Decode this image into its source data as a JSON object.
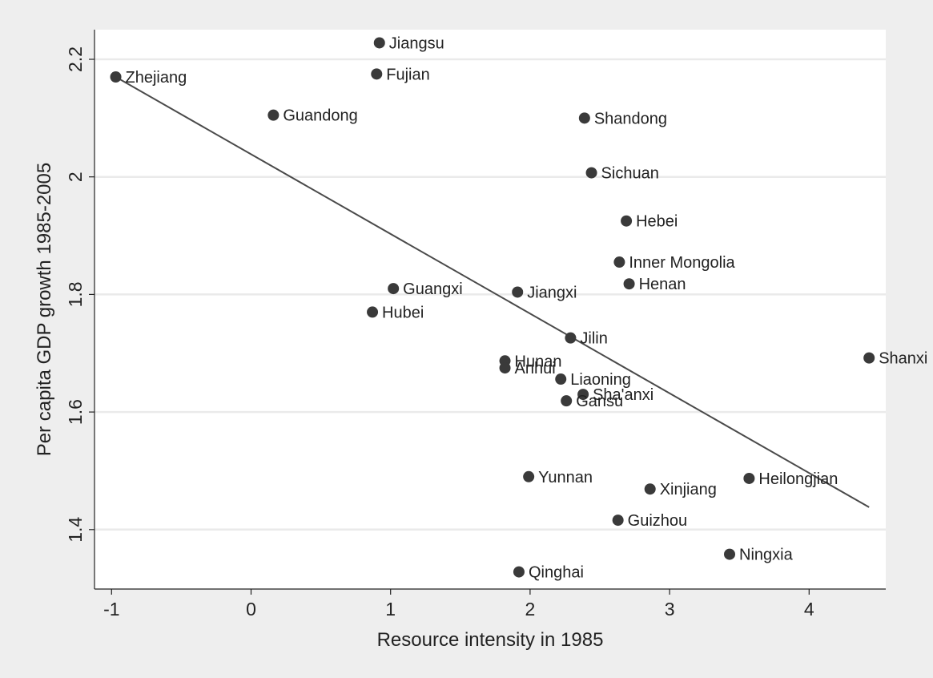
{
  "chart_data": {
    "type": "scatter",
    "title": "",
    "xlabel": "Resource intensity in 1985",
    "ylabel": "Per capita GDP growth 1985-2005",
    "xlim": [
      -1.1,
      4.5
    ],
    "ylim": [
      1.3,
      2.25
    ],
    "xticks": [
      -1,
      0,
      1,
      2,
      3,
      4
    ],
    "yticks": [
      1.4,
      1.6,
      1.8,
      2.0,
      2.2
    ],
    "xtick_labels": [
      "-1",
      "0",
      "1",
      "2",
      "3",
      "4"
    ],
    "ytick_labels": [
      "1.4",
      "1.6",
      "1.8",
      "2",
      "2.2"
    ],
    "grid": "horizontal",
    "legend": "none",
    "colors": {
      "outer_background": "#eeeeee",
      "plot_background": "#ffffff",
      "gridline": "#eaeaea",
      "marker": "#3a3a3a",
      "fit_line": "#4a4a4a",
      "text": "#222222"
    },
    "points": [
      {
        "label": "Zhejiang",
        "x": -0.97,
        "y": 2.17
      },
      {
        "label": "Jiangsu",
        "x": 0.92,
        "y": 2.228
      },
      {
        "label": "Fujian",
        "x": 0.9,
        "y": 2.175
      },
      {
        "label": "Guandong",
        "x": 0.16,
        "y": 2.105
      },
      {
        "label": "Shandong",
        "x": 2.39,
        "y": 2.1
      },
      {
        "label": "Sichuan",
        "x": 2.44,
        "y": 2.007
      },
      {
        "label": "Hebei",
        "x": 2.69,
        "y": 1.925
      },
      {
        "label": "Inner Mongolia",
        "x": 2.64,
        "y": 1.855
      },
      {
        "label": "Henan",
        "x": 2.71,
        "y": 1.818
      },
      {
        "label": "Guangxi",
        "x": 1.02,
        "y": 1.81
      },
      {
        "label": "Jiangxi",
        "x": 1.91,
        "y": 1.804
      },
      {
        "label": "Hubei",
        "x": 0.87,
        "y": 1.77
      },
      {
        "label": "Jilin",
        "x": 2.29,
        "y": 1.726
      },
      {
        "label": "Shanxi",
        "x": 4.43,
        "y": 1.692
      },
      {
        "label": "Hunan",
        "x": 1.82,
        "y": 1.687
      },
      {
        "label": "Anhui",
        "x": 1.82,
        "y": 1.675
      },
      {
        "label": "Liaoning",
        "x": 2.22,
        "y": 1.656
      },
      {
        "label": "Sha'anxi",
        "x": 2.38,
        "y": 1.63
      },
      {
        "label": "Gansu",
        "x": 2.26,
        "y": 1.619
      },
      {
        "label": "Yunnan",
        "x": 1.99,
        "y": 1.49
      },
      {
        "label": "Heilongjian",
        "x": 3.57,
        "y": 1.487
      },
      {
        "label": "Xinjiang",
        "x": 2.86,
        "y": 1.469
      },
      {
        "label": "Guizhou",
        "x": 2.63,
        "y": 1.416
      },
      {
        "label": "Ningxia",
        "x": 3.43,
        "y": 1.358
      },
      {
        "label": "Qinghai",
        "x": 1.92,
        "y": 1.328
      }
    ],
    "fit_line": {
      "x": [
        -0.97,
        4.43
      ],
      "y": [
        2.17,
        1.438
      ]
    }
  }
}
